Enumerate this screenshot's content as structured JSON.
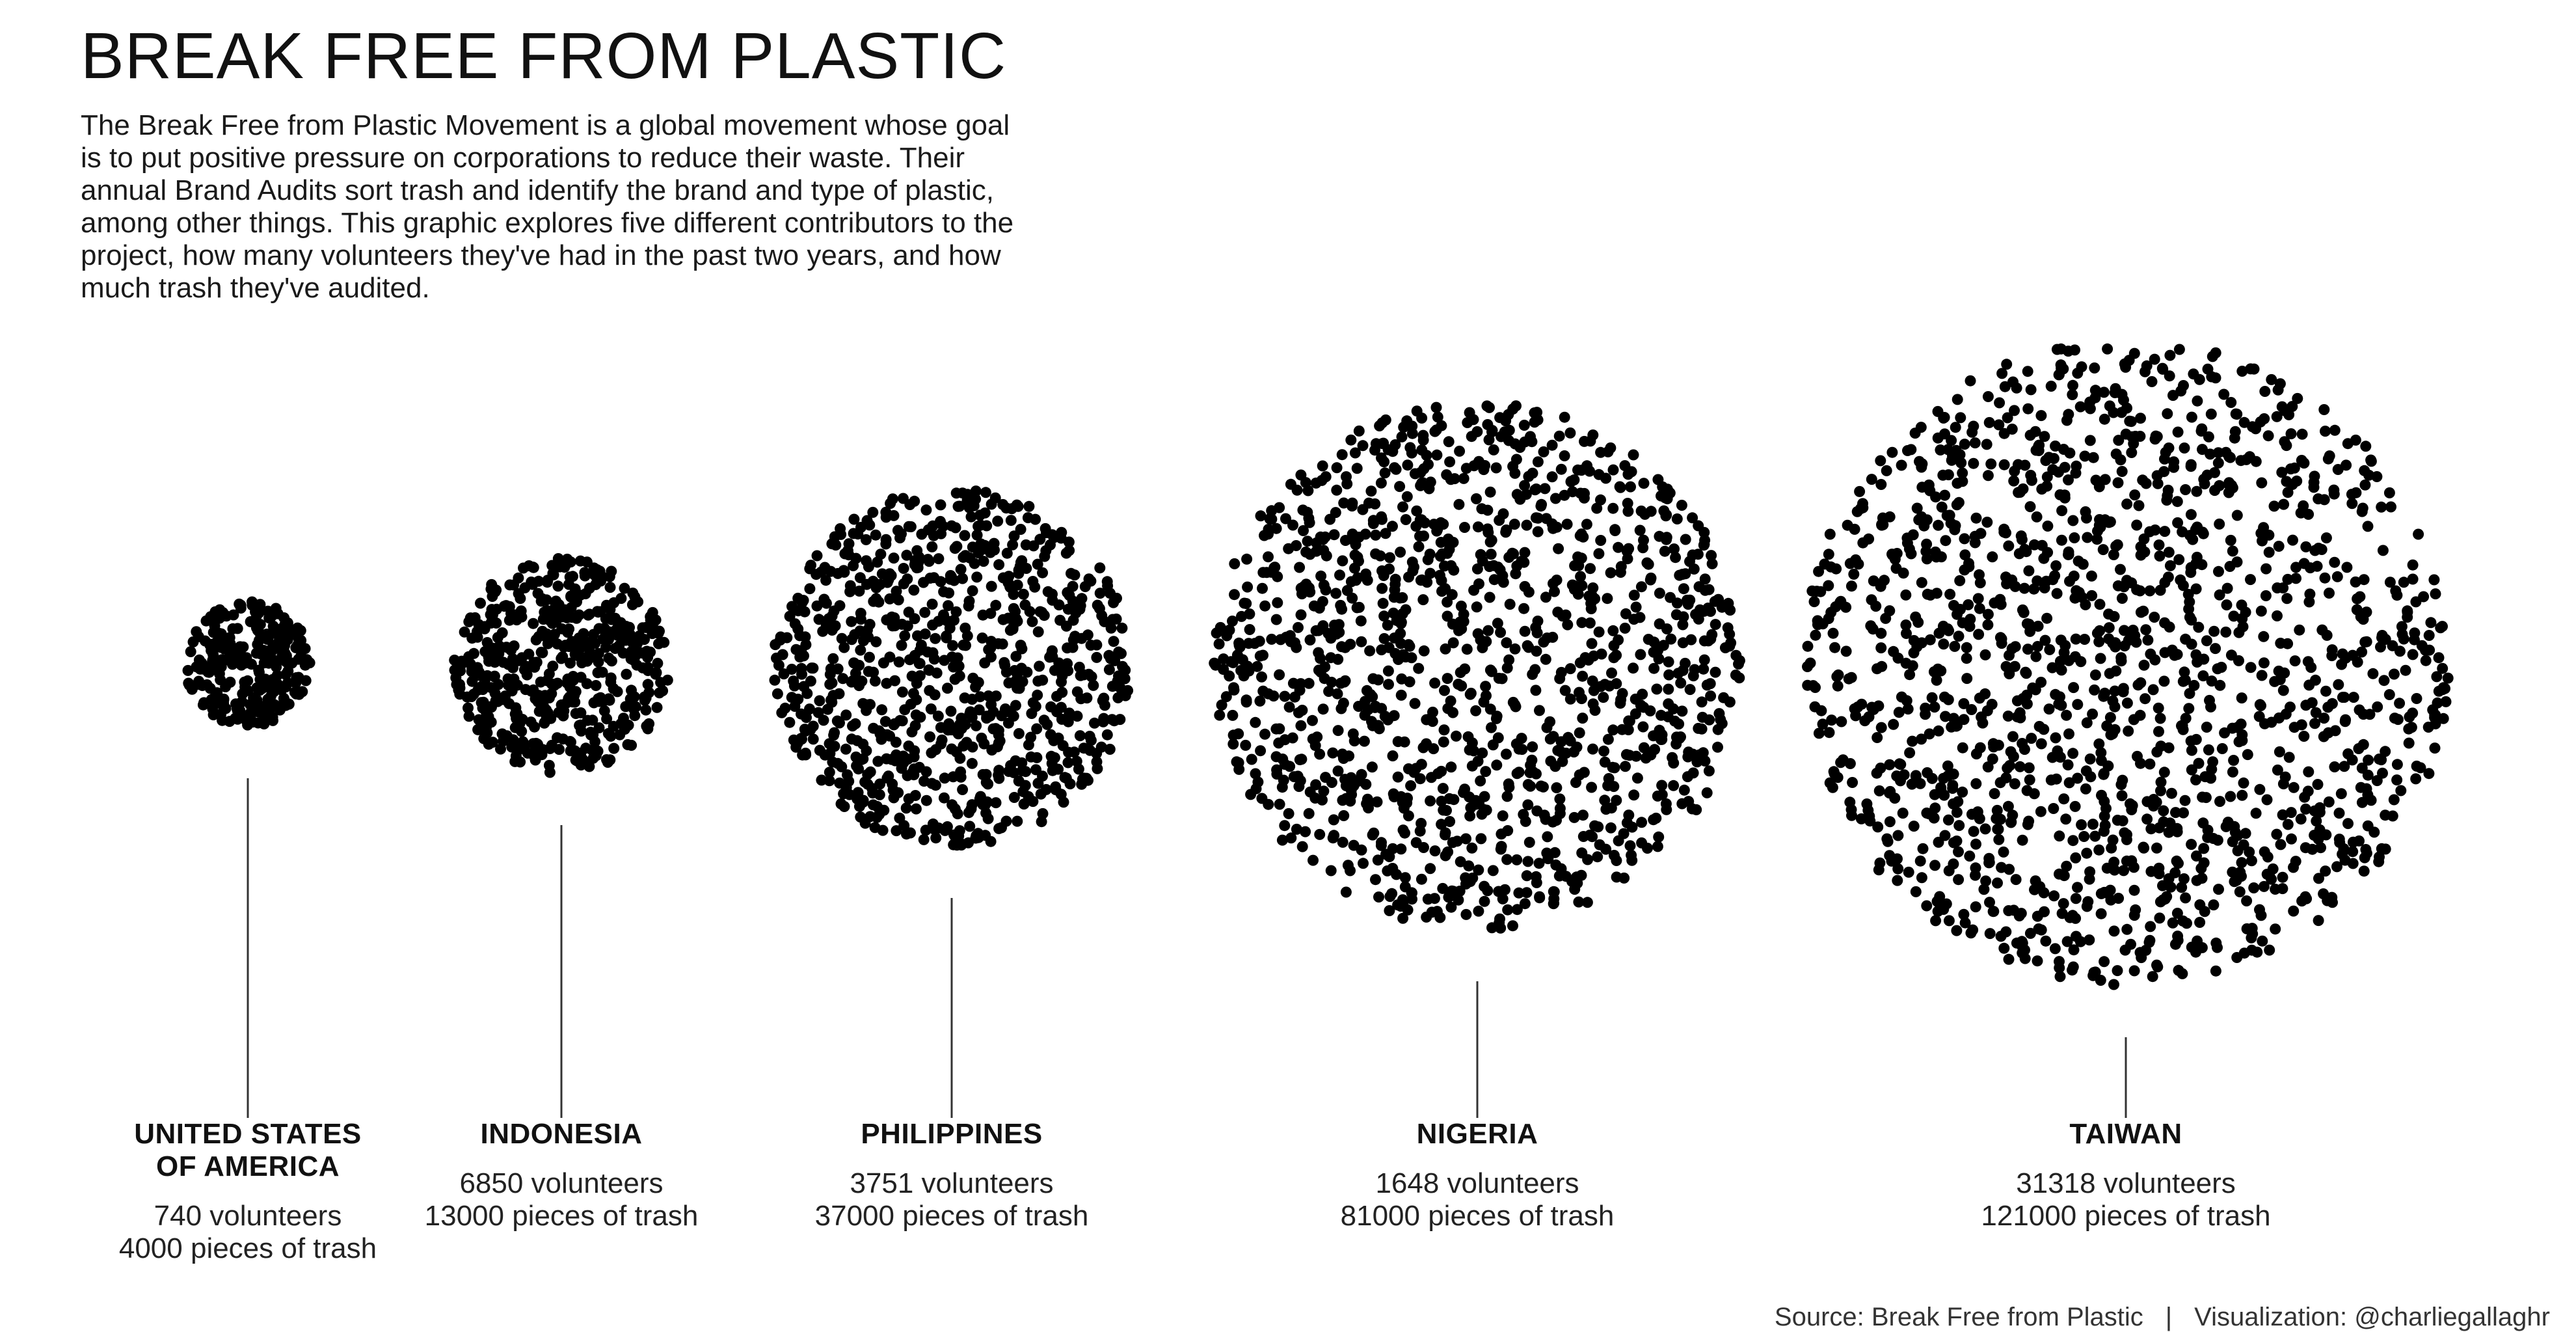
{
  "title": "BREAK FREE FROM PLASTIC",
  "subtitle": "The Break Free from Plastic Movement is a global movement whose goal is to put positive pressure on corporations to reduce their waste. Their annual Brand Audits sort trash and identify the brand and type of plastic, among other things. This graphic explores five different contributors to the project, how many volunteers they've had in the past two years, and how much trash they've audited.",
  "footer": {
    "source": "Source: Break Free from Plastic",
    "separator": "|",
    "credit": "Visualization: @charliegallaghr"
  },
  "chart_data": {
    "type": "scatter",
    "encoding": "each country is a circular cluster of dots; cluster size grows with pieces of trash audited",
    "series": [
      {
        "name": "UNITED STATES OF AMERICA",
        "name_lines": [
          "UNITED STATES",
          "OF AMERICA"
        ],
        "volunteers": 740,
        "trash": 4000,
        "volunteers_label": "740 volunteers",
        "trash_label": "4000 pieces of trash"
      },
      {
        "name": "INDONESIA",
        "name_lines": [
          "INDONESIA"
        ],
        "volunteers": 6850,
        "trash": 13000,
        "volunteers_label": "6850 volunteers",
        "trash_label": "13000 pieces of trash"
      },
      {
        "name": "PHILIPPINES",
        "name_lines": [
          "PHILIPPINES"
        ],
        "volunteers": 3751,
        "trash": 37000,
        "volunteers_label": "3751 volunteers",
        "trash_label": "37000 pieces of trash"
      },
      {
        "name": "NIGERIA",
        "name_lines": [
          "NIGERIA"
        ],
        "volunteers": 1648,
        "trash": 81000,
        "volunteers_label": "1648 volunteers",
        "trash_label": "81000 pieces of trash"
      },
      {
        "name": "TAIWAN",
        "name_lines": [
          "TAIWAN"
        ],
        "volunteers": 31318,
        "trash": 121000,
        "volunteers_label": "31318 volunteers",
        "trash_label": "121000 pieces of trash"
      }
    ],
    "dot_color": "#000000",
    "line_color": "#333333"
  }
}
